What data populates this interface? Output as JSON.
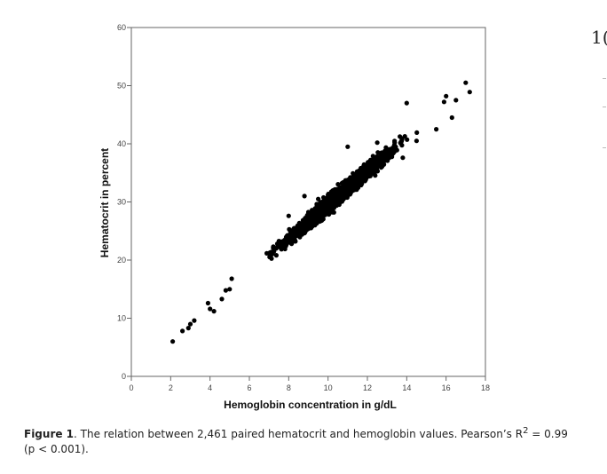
{
  "chart_data": {
    "type": "scatter",
    "xlabel": "Hemoglobin concentration in g/dL",
    "ylabel": "Hematocrit in percent",
    "xlim": [
      0,
      18
    ],
    "ylim": [
      0,
      60
    ],
    "xticks": [
      0,
      2,
      4,
      6,
      8,
      10,
      12,
      14,
      16,
      18
    ],
    "yticks": [
      0,
      10,
      20,
      30,
      40,
      50,
      60
    ],
    "grid": false,
    "marker_color": "#000000",
    "trend": {
      "slope": 2.95,
      "intercept": 0.0,
      "spread": 0.9
    },
    "generated_point_count": 2461,
    "points": [
      [
        2.1,
        6.0
      ],
      [
        2.6,
        7.8
      ],
      [
        2.9,
        8.3
      ],
      [
        3.0,
        9.0
      ],
      [
        3.2,
        9.6
      ],
      [
        3.9,
        12.6
      ],
      [
        4.0,
        11.6
      ],
      [
        4.2,
        11.2
      ],
      [
        4.6,
        13.3
      ],
      [
        4.8,
        14.8
      ],
      [
        5.0,
        15.0
      ],
      [
        5.1,
        16.8
      ],
      [
        8.0,
        27.6
      ],
      [
        8.8,
        31.0
      ],
      [
        9.5,
        30.5
      ],
      [
        10.3,
        28.2
      ],
      [
        11.0,
        39.5
      ],
      [
        12.5,
        40.2
      ],
      [
        13.8,
        37.6
      ],
      [
        14.0,
        47.0
      ],
      [
        14.5,
        40.5
      ],
      [
        15.5,
        42.5
      ],
      [
        15.9,
        47.2
      ],
      [
        16.0,
        48.2
      ],
      [
        16.3,
        44.5
      ],
      [
        17.0,
        50.5
      ],
      [
        17.2,
        48.9
      ],
      [
        16.5,
        47.5
      ]
    ]
  },
  "caption": {
    "label": "Figure 1",
    "text_before_sup": ". The relation between 2,461 paired hematocrit and hemoglobin values. Pearson’s R",
    "sup": "2",
    "text_after_sup": " = 0.99 (p < 0.001)."
  },
  "side_text": "1("
}
